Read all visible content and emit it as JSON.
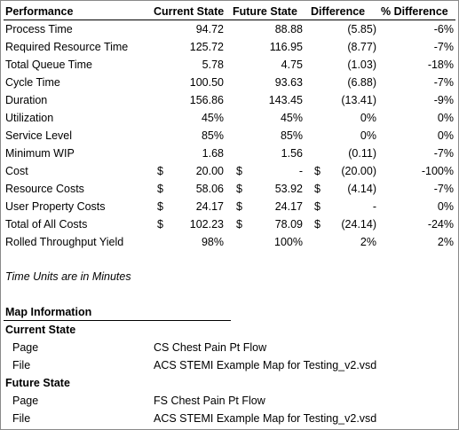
{
  "headers": {
    "performance": "Performance",
    "current": "Current State",
    "future": "Future State",
    "difference": "Difference",
    "pct_difference": "% Difference"
  },
  "rows": [
    {
      "label": "Process Time",
      "current": "94.72",
      "future": "88.88",
      "difference": "(5.85)",
      "pct": "-6%",
      "cur_sym": "",
      "fut_sym": "",
      "diff_sym": ""
    },
    {
      "label": "Required Resource Time",
      "current": "125.72",
      "future": "116.95",
      "difference": "(8.77)",
      "pct": "-7%",
      "cur_sym": "",
      "fut_sym": "",
      "diff_sym": ""
    },
    {
      "label": "Total Queue Time",
      "current": "5.78",
      "future": "4.75",
      "difference": "(1.03)",
      "pct": "-18%",
      "cur_sym": "",
      "fut_sym": "",
      "diff_sym": ""
    },
    {
      "label": "Cycle Time",
      "current": "100.50",
      "future": "93.63",
      "difference": "(6.88)",
      "pct": "-7%",
      "cur_sym": "",
      "fut_sym": "",
      "diff_sym": ""
    },
    {
      "label": "Duration",
      "current": "156.86",
      "future": "143.45",
      "difference": "(13.41)",
      "pct": "-9%",
      "cur_sym": "",
      "fut_sym": "",
      "diff_sym": ""
    },
    {
      "label": "Utilization",
      "current": "45%",
      "future": "45%",
      "difference": "0%",
      "pct": "0%",
      "cur_sym": "",
      "fut_sym": "",
      "diff_sym": ""
    },
    {
      "label": "Service Level",
      "current": "85%",
      "future": "85%",
      "difference": "0%",
      "pct": "0%",
      "cur_sym": "",
      "fut_sym": "",
      "diff_sym": ""
    },
    {
      "label": "Minimum WIP",
      "current": "1.68",
      "future": "1.56",
      "difference": "(0.11)",
      "pct": "-7%",
      "cur_sym": "",
      "fut_sym": "",
      "diff_sym": ""
    },
    {
      "label": "Cost",
      "current": "20.00",
      "future": "-",
      "difference": "(20.00)",
      "pct": "-100%",
      "cur_sym": "$",
      "fut_sym": "$",
      "diff_sym": "$"
    },
    {
      "label": "Resource Costs",
      "current": "58.06",
      "future": "53.92",
      "difference": "(4.14)",
      "pct": "-7%",
      "cur_sym": "$",
      "fut_sym": "$",
      "diff_sym": "$"
    },
    {
      "label": "User Property Costs",
      "current": "24.17",
      "future": "24.17",
      "difference": "-",
      "pct": "0%",
      "cur_sym": "$",
      "fut_sym": "$",
      "diff_sym": "$"
    },
    {
      "label": "Total of All Costs",
      "current": "102.23",
      "future": "78.09",
      "difference": "(24.14)",
      "pct": "-24%",
      "cur_sym": "$",
      "fut_sym": "$",
      "diff_sym": "$"
    },
    {
      "label": "Rolled Throughput Yield",
      "current": "98%",
      "future": "100%",
      "difference": "2%",
      "pct": "2%",
      "cur_sym": "",
      "fut_sym": "",
      "diff_sym": ""
    }
  ],
  "note": "Time Units are in Minutes",
  "map_info": {
    "title": "Map Information",
    "current_state": {
      "heading": "Current State",
      "page_label": "Page",
      "page_value": "CS Chest Pain Pt Flow",
      "file_label": "File",
      "file_value": "ACS STEMI Example Map for Testing_v2.vsd"
    },
    "future_state": {
      "heading": "Future State",
      "page_label": "Page",
      "page_value": "FS Chest Pain Pt Flow",
      "file_label": "File",
      "file_value": "ACS STEMI Example Map for Testing_v2.vsd"
    }
  }
}
